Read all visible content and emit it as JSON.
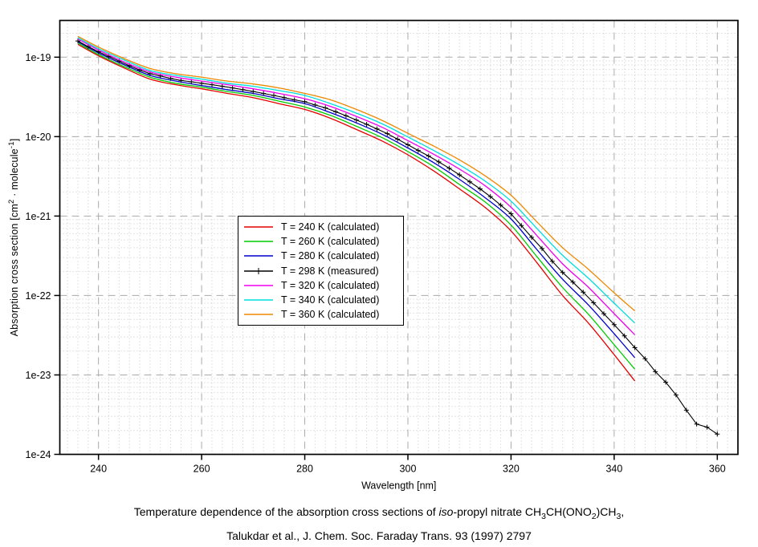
{
  "caption": {
    "line1_segments": [
      {
        "t": "Temperature dependence of the absorption cross sections of "
      },
      {
        "t": "iso",
        "style": "italic"
      },
      {
        "t": "-propyl nitrate CH"
      },
      {
        "t": "3",
        "style": "sub"
      },
      {
        "t": "CH(ONO"
      },
      {
        "t": "2",
        "style": "sub"
      },
      {
        "t": ")CH"
      },
      {
        "t": "3",
        "style": "sub"
      },
      {
        "t": ","
      }
    ],
    "line2": "Talukdar et al., J. Chem. Soc. Faraday Trans. 93 (1997) 2797"
  },
  "chart_data": {
    "type": "line",
    "title": "Temperature dependence of the absorption cross sections of iso-propyl nitrate CH3CH(ONO2)CH3",
    "xlabel": "Wavelength [nm]",
    "ylabel_plain": "Absorption cross section [cm2 · molecule-1]",
    "ylabel_segments": [
      {
        "t": "Absorption cross section [cm"
      },
      {
        "t": "2",
        "style": "sup"
      },
      {
        "t": " · molecule"
      },
      {
        "t": "-1",
        "style": "sup"
      },
      {
        "t": "]"
      }
    ],
    "x_axis": {
      "min": 232.5,
      "max": 364.0,
      "major_ticks": [
        240,
        260,
        280,
        300,
        320,
        340,
        360
      ],
      "minor_step_nm": 2
    },
    "y_axis": {
      "scale": "log",
      "min": 1e-24,
      "max": 2.9e-19,
      "tick_labels": [
        "1e-19",
        "1e-20",
        "1e-21",
        "1e-22",
        "1e-23",
        "1e-24"
      ],
      "tick_exponents": [
        -19,
        -20,
        -21,
        -22,
        -23,
        -24
      ]
    },
    "grid": {
      "major_color": "#aaaaaa",
      "minor_color": "#c8c8c8",
      "major_dash": "9 6",
      "minor_dash": "1 3"
    },
    "legend_position": "center-left",
    "series": [
      {
        "label": "T = 240 K (calculated)",
        "temperature_K": 240,
        "kind": "calculated",
        "color": "#e60000",
        "marker": null,
        "points": [
          [
            236,
            1.45e-19
          ],
          [
            240,
            1.04e-19
          ],
          [
            245,
            7.3e-20
          ],
          [
            250,
            5.3e-20
          ],
          [
            255,
            4.5e-20
          ],
          [
            260,
            4e-20
          ],
          [
            265,
            3.5e-20
          ],
          [
            270,
            3.1e-20
          ],
          [
            275,
            2.6e-20
          ],
          [
            280,
            2.2e-20
          ],
          [
            285,
            1.7e-20
          ],
          [
            290,
            1.23e-20
          ],
          [
            295,
            8.8e-21
          ],
          [
            300,
            5.9e-21
          ],
          [
            305,
            3.7e-21
          ],
          [
            310,
            2.2e-21
          ],
          [
            315,
            1.28e-21
          ],
          [
            320,
            6.5e-22
          ],
          [
            325,
            2.6e-22
          ],
          [
            330,
            1e-22
          ],
          [
            335,
            4.5e-23
          ],
          [
            340,
            1.8e-23
          ],
          [
            344,
            8.4e-24
          ]
        ]
      },
      {
        "label": "T = 260 K (calculated)",
        "temperature_K": 260,
        "kind": "calculated",
        "color": "#00cc00",
        "marker": null,
        "points": [
          [
            236,
            1.51e-19
          ],
          [
            240,
            1.08e-19
          ],
          [
            245,
            7.6e-20
          ],
          [
            250,
            5.6e-20
          ],
          [
            255,
            4.7e-20
          ],
          [
            260,
            4.2e-20
          ],
          [
            265,
            3.7e-20
          ],
          [
            270,
            3.3e-20
          ],
          [
            275,
            2.8e-20
          ],
          [
            280,
            2.36e-20
          ],
          [
            285,
            1.85e-20
          ],
          [
            290,
            1.35e-20
          ],
          [
            295,
            9.7e-21
          ],
          [
            300,
            6.5e-21
          ],
          [
            305,
            4.2e-21
          ],
          [
            310,
            2.5e-21
          ],
          [
            315,
            1.5e-21
          ],
          [
            320,
            7.7e-22
          ],
          [
            325,
            3.1e-22
          ],
          [
            330,
            1.26e-22
          ],
          [
            335,
            5.8e-23
          ],
          [
            340,
            2.4e-23
          ],
          [
            344,
            1.18e-23
          ]
        ]
      },
      {
        "label": "T = 280 K (calculated)",
        "temperature_K": 280,
        "kind": "calculated",
        "color": "#0000cc",
        "marker": null,
        "points": [
          [
            236,
            1.57e-19
          ],
          [
            240,
            1.13e-19
          ],
          [
            245,
            8e-20
          ],
          [
            250,
            5.9e-20
          ],
          [
            255,
            5e-20
          ],
          [
            260,
            4.4e-20
          ],
          [
            265,
            3.9e-20
          ],
          [
            270,
            3.5e-20
          ],
          [
            275,
            3e-20
          ],
          [
            280,
            2.6e-20
          ],
          [
            285,
            2e-20
          ],
          [
            290,
            1.49e-20
          ],
          [
            295,
            1.07e-20
          ],
          [
            300,
            7.2e-21
          ],
          [
            305,
            4.7e-21
          ],
          [
            310,
            2.9e-21
          ],
          [
            315,
            1.7e-21
          ],
          [
            320,
            9.2e-22
          ],
          [
            325,
            3.8e-22
          ],
          [
            330,
            1.6e-22
          ],
          [
            335,
            7.6e-23
          ],
          [
            340,
            3.3e-23
          ],
          [
            344,
            1.65e-23
          ]
        ]
      },
      {
        "label": "T = 298 K (measured)",
        "temperature_K": 298,
        "kind": "measured",
        "color": "#000000",
        "marker": "plus",
        "points": [
          [
            236,
            1.6e-19
          ],
          [
            238,
            1.36e-19
          ],
          [
            240,
            1.17e-19
          ],
          [
            242,
            1.02e-19
          ],
          [
            244,
            8.9e-20
          ],
          [
            246,
            7.8e-20
          ],
          [
            248,
            6.9e-20
          ],
          [
            250,
            6.2e-20
          ],
          [
            252,
            5.8e-20
          ],
          [
            254,
            5.4e-20
          ],
          [
            256,
            5.1e-20
          ],
          [
            258,
            4.9e-20
          ],
          [
            260,
            4.7e-20
          ],
          [
            262,
            4.5e-20
          ],
          [
            264,
            4.3e-20
          ],
          [
            266,
            4.1e-20
          ],
          [
            268,
            3.9e-20
          ],
          [
            270,
            3.7e-20
          ],
          [
            272,
            3.5e-20
          ],
          [
            274,
            3.3e-20
          ],
          [
            276,
            3.1e-20
          ],
          [
            278,
            2.9e-20
          ],
          [
            280,
            2.75e-20
          ],
          [
            282,
            2.5e-20
          ],
          [
            284,
            2.3e-20
          ],
          [
            286,
            2.06e-20
          ],
          [
            288,
            1.83e-20
          ],
          [
            290,
            1.62e-20
          ],
          [
            292,
            1.43e-20
          ],
          [
            294,
            1.25e-20
          ],
          [
            296,
            1.09e-20
          ],
          [
            298,
            9.3e-21
          ],
          [
            300,
            7.9e-21
          ],
          [
            302,
            6.7e-21
          ],
          [
            304,
            5.7e-21
          ],
          [
            306,
            4.8e-21
          ],
          [
            308,
            4e-21
          ],
          [
            310,
            3.3e-21
          ],
          [
            312,
            2.7e-21
          ],
          [
            314,
            2.2e-21
          ],
          [
            316,
            1.76e-21
          ],
          [
            318,
            1.37e-21
          ],
          [
            320,
            1.07e-21
          ],
          [
            322,
            7.6e-22
          ],
          [
            324,
            5.4e-22
          ],
          [
            326,
            3.9e-22
          ],
          [
            328,
            2.7e-22
          ],
          [
            330,
            1.95e-22
          ],
          [
            332,
            1.47e-22
          ],
          [
            334,
            1.1e-22
          ],
          [
            336,
            8.1e-23
          ],
          [
            338,
            5.9e-23
          ],
          [
            340,
            4.3e-23
          ],
          [
            342,
            3.1e-23
          ],
          [
            344,
            2.2e-23
          ],
          [
            346,
            1.6e-23
          ],
          [
            348,
            1.1e-23
          ],
          [
            350,
            8.1e-24
          ],
          [
            352,
            5.6e-24
          ],
          [
            354,
            3.6e-24
          ],
          [
            356,
            2.4e-24
          ],
          [
            358,
            2.2e-24
          ],
          [
            360,
            1.8e-24
          ]
        ]
      },
      {
        "label": "T = 320 K (calculated)",
        "temperature_K": 320,
        "kind": "calculated",
        "color": "#ee00ee",
        "marker": null,
        "points": [
          [
            236,
            1.69e-19
          ],
          [
            240,
            1.23e-19
          ],
          [
            245,
            8.7e-20
          ],
          [
            250,
            6.5e-20
          ],
          [
            255,
            5.6e-20
          ],
          [
            260,
            5e-20
          ],
          [
            265,
            4.5e-20
          ],
          [
            270,
            4e-20
          ],
          [
            275,
            3.5e-20
          ],
          [
            280,
            3e-20
          ],
          [
            285,
            2.4e-20
          ],
          [
            290,
            1.8e-20
          ],
          [
            295,
            1.31e-20
          ],
          [
            300,
            8.9e-21
          ],
          [
            305,
            6e-21
          ],
          [
            310,
            3.9e-21
          ],
          [
            315,
            2.4e-21
          ],
          [
            320,
            1.29e-21
          ],
          [
            325,
            5.7e-22
          ],
          [
            330,
            2.5e-22
          ],
          [
            335,
            1.27e-22
          ],
          [
            340,
            5.9e-23
          ],
          [
            344,
            3.2e-23
          ]
        ]
      },
      {
        "label": "T = 340 K (calculated)",
        "temperature_K": 340,
        "kind": "calculated",
        "color": "#00dddd",
        "marker": null,
        "points": [
          [
            236,
            1.76e-19
          ],
          [
            240,
            1.28e-19
          ],
          [
            245,
            9.2e-20
          ],
          [
            250,
            6.8e-20
          ],
          [
            255,
            5.9e-20
          ],
          [
            260,
            5.3e-20
          ],
          [
            265,
            4.7e-20
          ],
          [
            270,
            4.3e-20
          ],
          [
            275,
            3.8e-20
          ],
          [
            280,
            3.3e-20
          ],
          [
            285,
            2.6e-20
          ],
          [
            290,
            1.98e-20
          ],
          [
            295,
            1.45e-20
          ],
          [
            300,
            9.9e-21
          ],
          [
            305,
            6.7e-21
          ],
          [
            310,
            4.4e-21
          ],
          [
            315,
            2.75e-21
          ],
          [
            320,
            1.54e-21
          ],
          [
            325,
            7e-22
          ],
          [
            330,
            3.2e-22
          ],
          [
            335,
            1.65e-22
          ],
          [
            340,
            8e-23
          ],
          [
            344,
            4.5e-23
          ]
        ]
      },
      {
        "label": "T = 360 K (calculated)",
        "temperature_K": 360,
        "kind": "calculated",
        "color": "#ee8800",
        "marker": null,
        "points": [
          [
            236,
            1.83e-19
          ],
          [
            240,
            1.34e-19
          ],
          [
            245,
            9.6e-20
          ],
          [
            250,
            7.2e-20
          ],
          [
            255,
            6.2e-20
          ],
          [
            260,
            5.6e-20
          ],
          [
            265,
            5e-20
          ],
          [
            270,
            4.6e-20
          ],
          [
            275,
            4.1e-20
          ],
          [
            280,
            3.5e-20
          ],
          [
            285,
            2.9e-20
          ],
          [
            290,
            2.2e-20
          ],
          [
            295,
            1.6e-20
          ],
          [
            300,
            1.1e-20
          ],
          [
            305,
            7.6e-21
          ],
          [
            310,
            5.1e-21
          ],
          [
            315,
            3.2e-21
          ],
          [
            320,
            1.83e-21
          ],
          [
            325,
            8.5e-22
          ],
          [
            330,
            4e-22
          ],
          [
            335,
            2.14e-22
          ],
          [
            340,
            1.08e-22
          ],
          [
            344,
            6.4e-23
          ]
        ]
      }
    ]
  }
}
